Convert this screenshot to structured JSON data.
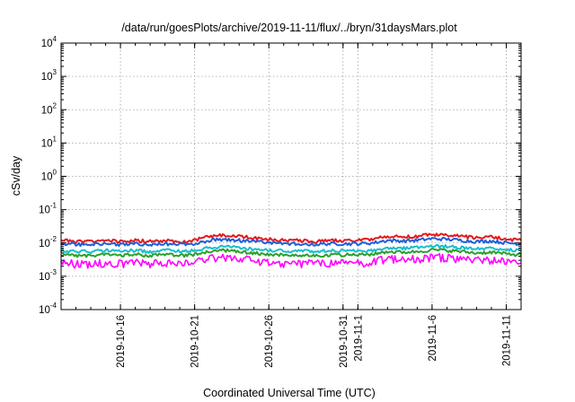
{
  "chart_data": {
    "type": "line",
    "title": "/data/run/goesPlots/archive/2019-11-11/flux/../bryn/31daysMars.plot",
    "xlabel": "Coordinated Universal Time (UTC)",
    "ylabel": "cSv/day",
    "y_scale": "log",
    "ylim": [
      0.0001,
      10000
    ],
    "y_ticks": [
      {
        "base": "10",
        "exp": "-4",
        "value": 0.0001
      },
      {
        "base": "10",
        "exp": "-3",
        "value": 0.001
      },
      {
        "base": "10",
        "exp": "-2",
        "value": 0.01
      },
      {
        "base": "10",
        "exp": "-1",
        "value": 0.1
      },
      {
        "base": "10",
        "exp": "0",
        "value": 1
      },
      {
        "base": "10",
        "exp": "1",
        "value": 10
      },
      {
        "base": "10",
        "exp": "2",
        "value": 100
      },
      {
        "base": "10",
        "exp": "3",
        "value": 1000
      },
      {
        "base": "10",
        "exp": "4",
        "value": 10000
      }
    ],
    "xlim": [
      "2019-10-12",
      "2019-11-12"
    ],
    "x_ticks": [
      {
        "date": "2019-10-16",
        "label": "2019-10-16"
      },
      {
        "date": "2019-10-21",
        "label": "2019-10-21"
      },
      {
        "date": "2019-10-26",
        "label": "2019-10-26"
      },
      {
        "date": "2019-10-31",
        "label": "2019-10-31"
      },
      {
        "date": "2019-11-01",
        "label": "2019-11-1"
      },
      {
        "date": "2019-11-06",
        "label": "2019-11-6"
      },
      {
        "date": "2019-11-11",
        "label": "2019-11-11"
      }
    ],
    "grid": true,
    "x": [
      "2019-10-12",
      "2019-10-13",
      "2019-10-14",
      "2019-10-15",
      "2019-10-16",
      "2019-10-17",
      "2019-10-18",
      "2019-10-19",
      "2019-10-20",
      "2019-10-21",
      "2019-10-22",
      "2019-10-23",
      "2019-10-24",
      "2019-10-25",
      "2019-10-26",
      "2019-10-27",
      "2019-10-28",
      "2019-10-29",
      "2019-10-30",
      "2019-10-31",
      "2019-11-01",
      "2019-11-02",
      "2019-11-03",
      "2019-11-04",
      "2019-11-05",
      "2019-11-06",
      "2019-11-07",
      "2019-11-08",
      "2019-11-09",
      "2019-11-10",
      "2019-11-11",
      "2019-11-12"
    ],
    "series": [
      {
        "color": "#e41a1c",
        "values": [
          0.012,
          0.011,
          0.011,
          0.012,
          0.011,
          0.012,
          0.011,
          0.012,
          0.011,
          0.012,
          0.016,
          0.017,
          0.016,
          0.014,
          0.013,
          0.012,
          0.012,
          0.011,
          0.012,
          0.012,
          0.012,
          0.013,
          0.016,
          0.015,
          0.016,
          0.018,
          0.017,
          0.016,
          0.014,
          0.015,
          0.013,
          0.012
        ]
      },
      {
        "color": "#1f5fdc",
        "values": [
          0.0095,
          0.009,
          0.009,
          0.0095,
          0.009,
          0.0095,
          0.009,
          0.0095,
          0.009,
          0.0095,
          0.012,
          0.013,
          0.012,
          0.011,
          0.01,
          0.0095,
          0.0095,
          0.009,
          0.0095,
          0.0095,
          0.0095,
          0.01,
          0.012,
          0.0115,
          0.012,
          0.0135,
          0.013,
          0.012,
          0.011,
          0.0115,
          0.01,
          0.0095
        ]
      },
      {
        "color": "#17becf",
        "values": [
          0.006,
          0.0055,
          0.0055,
          0.006,
          0.0055,
          0.006,
          0.0055,
          0.006,
          0.0055,
          0.006,
          0.0072,
          0.0078,
          0.0072,
          0.0065,
          0.006,
          0.0058,
          0.0058,
          0.0055,
          0.0058,
          0.0058,
          0.0058,
          0.006,
          0.0072,
          0.007,
          0.0072,
          0.008,
          0.0078,
          0.0072,
          0.0066,
          0.007,
          0.0062,
          0.0058
        ]
      },
      {
        "color": "#2ca02c",
        "values": [
          0.0045,
          0.0042,
          0.0042,
          0.0045,
          0.0042,
          0.0045,
          0.0042,
          0.0045,
          0.0042,
          0.0045,
          0.0055,
          0.006,
          0.0055,
          0.005,
          0.0046,
          0.0044,
          0.0044,
          0.0042,
          0.0044,
          0.0044,
          0.0044,
          0.0046,
          0.0055,
          0.0053,
          0.0055,
          0.0062,
          0.006,
          0.0055,
          0.005,
          0.0053,
          0.0047,
          0.0044
        ]
      },
      {
        "color": "#ff00ff",
        "values": [
          0.0026,
          0.0024,
          0.0024,
          0.0026,
          0.0024,
          0.0026,
          0.0024,
          0.0026,
          0.0024,
          0.0026,
          0.0034,
          0.0037,
          0.0034,
          0.003,
          0.0027,
          0.0025,
          0.0025,
          0.0024,
          0.0025,
          0.0025,
          0.0025,
          0.0027,
          0.0034,
          0.0032,
          0.0034,
          0.0038,
          0.0037,
          0.0034,
          0.003,
          0.0032,
          0.0028,
          0.0025
        ]
      }
    ]
  }
}
